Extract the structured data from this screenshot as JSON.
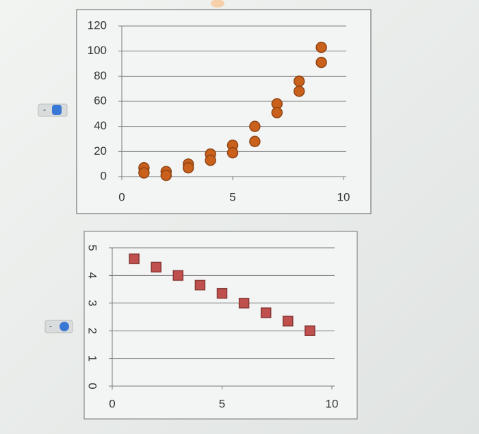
{
  "chart_data": [
    {
      "type": "scatter",
      "marker": "circle",
      "series": [
        {
          "color": "#c9601c",
          "x": [
            1,
            1,
            2,
            2,
            3,
            3,
            4,
            4,
            5,
            5,
            6,
            6,
            7,
            7,
            8,
            8,
            9,
            9
          ],
          "values": [
            7,
            3,
            4,
            1,
            10,
            7,
            18,
            13,
            25,
            19,
            40,
            28,
            58,
            51,
            76,
            68,
            103,
            91
          ]
        }
      ],
      "xlim": [
        0,
        10
      ],
      "ylim": [
        0,
        120
      ],
      "xticks": [
        0,
        5,
        10
      ],
      "yticks": [
        0,
        20,
        40,
        60,
        80,
        100,
        120
      ],
      "grid": true
    },
    {
      "type": "scatter",
      "marker": "square",
      "rotate_ytick_labels": true,
      "series": [
        {
          "color": "#c0504d",
          "x": [
            1,
            2,
            3,
            4,
            5,
            6,
            7,
            8,
            9
          ],
          "values": [
            4.6,
            4.3,
            4.0,
            3.65,
            3.35,
            3.0,
            2.65,
            2.35,
            2.0
          ]
        }
      ],
      "xlim": [
        0,
        10
      ],
      "ylim": [
        0,
        5
      ],
      "xticks": [
        0,
        5,
        10
      ],
      "yticks": [
        0,
        1,
        2,
        3,
        4,
        5
      ],
      "grid": true
    }
  ]
}
